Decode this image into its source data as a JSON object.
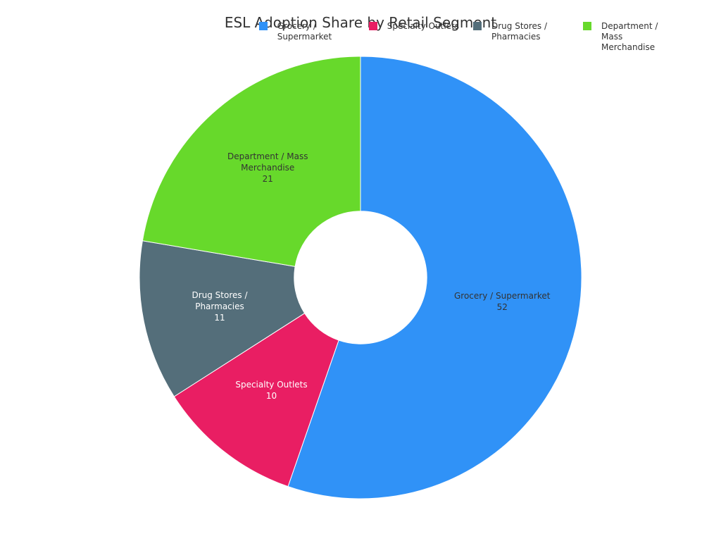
{
  "chart_data": {
    "type": "pie",
    "title": "ESL Adoption Share by Retail Segment",
    "categories": [
      "Grocery / Supermarket",
      "Specialty Outlets",
      "Drug Stores / Pharmacies",
      "Department / Mass Merchandise"
    ],
    "values": [
      52,
      10,
      11,
      21
    ],
    "colors": [
      "#3092f7",
      "#e91e63",
      "#546e7a",
      "#67d92b"
    ],
    "hole": 0.3,
    "legend": "top-right"
  }
}
